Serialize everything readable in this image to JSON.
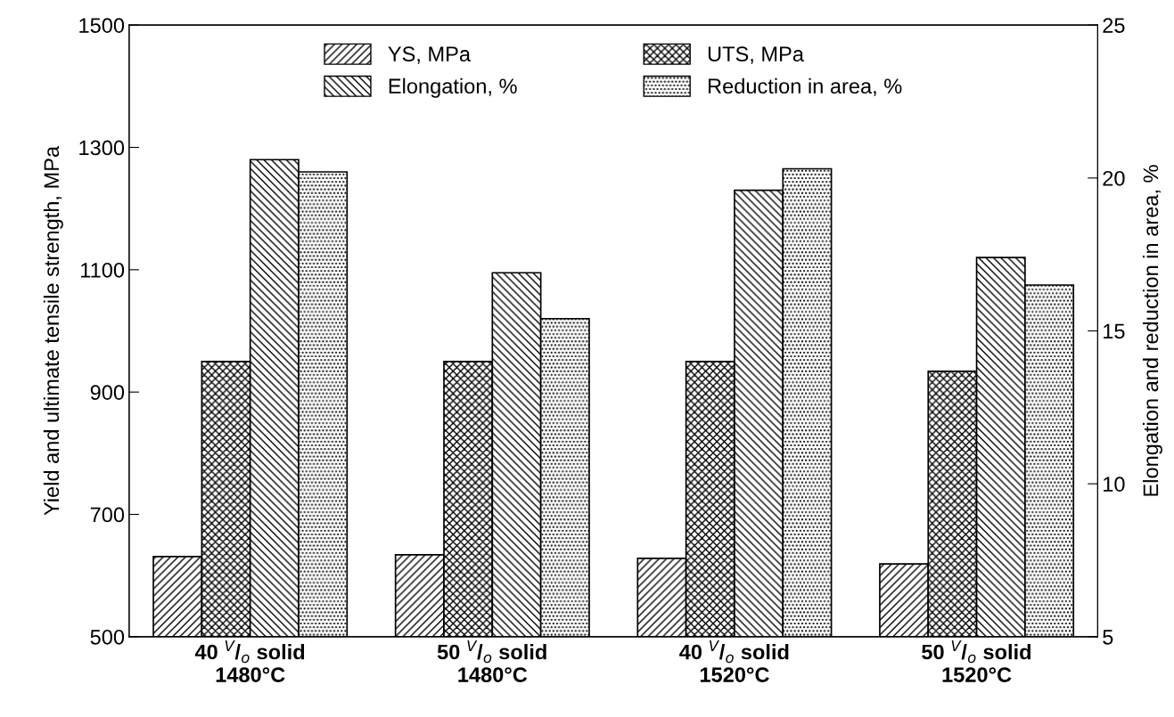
{
  "chart_data": {
    "type": "bar",
    "ylabel": "Yield and ultimate tensile strength, MPa",
    "y2label": "Elongation and reduction in area, %",
    "categories": [
      "40 $^{V}$/$_{o}$ solid\n1480°C",
      "50 $^{V}$/$_{o}$ solid\n1480°C",
      "40 $^{V}$/$_{o}$ solid\n1520°C",
      "50 $^{V}$/$_{o}$ solid\n1520°C"
    ],
    "series": [
      {
        "name": "YS, MPa",
        "color": "#000000",
        "values": [
          631,
          634,
          628,
          619
        ]
      },
      {
        "name": "UTS, MPa",
        "color": "#000000",
        "values": [
          950,
          950,
          950,
          934
        ]
      },
      {
        "name": "Elongation, %",
        "color": "#000000",
        "axis": "y2",
        "values": [
          20.6,
          16.9,
          19.6,
          17.4
        ]
      },
      {
        "name": "Reduction in area, %",
        "color": "#000000",
        "axis": "y2",
        "values": [
          20.2,
          15.4,
          20.3,
          16.5
        ]
      }
    ],
    "ylim": [
      500,
      1500
    ],
    "yticks": [
      500,
      700,
      900,
      1100,
      1300,
      1500
    ],
    "y2lim": [
      5,
      25
    ],
    "y2ticks": [
      5,
      10,
      15,
      20,
      25
    ],
    "legend": "top",
    "grid": false
  }
}
